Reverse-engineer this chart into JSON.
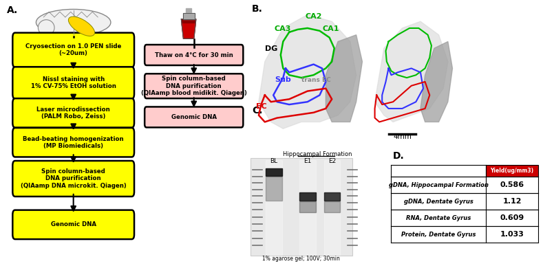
{
  "panel_A_label": "A.",
  "panel_B_label": "B.",
  "panel_C_label": "C.",
  "panel_D_label": "D.",
  "yellow_boxes": [
    "Cryosection on 1.0 PEN slide\n(~20um)",
    "Nissl staining with\n1% CV-75% EtOH solution",
    "Laser microdissection\n(PALM Robo, Zeiss)",
    "Bead-beating homogenization\n(MP Biomiedicals)",
    "Spin column-based\nDNA purification\n(QIAamp DNA microkit. Qiagen)",
    "Genomic DNA"
  ],
  "pink_boxes": [
    "Thaw on 4°C for 30 min",
    "Spin column-based\nDNA purification\n(QIAamp blood midikit. Qiagen)",
    "Genomic DNA"
  ],
  "yellow_color": "#FFFF00",
  "yellow_edge": "#000000",
  "pink_color": "#FFCCCC",
  "pink_edge": "#000000",
  "table_header": "Yield(ug/mm3)",
  "table_header_bg": "#CC0000",
  "table_header_color": "#FFFFFF",
  "table_rows": [
    [
      "gDNA, Hippocampal Formation",
      "0.586"
    ],
    [
      "gDNA, Dentate Gyrus",
      "1.12"
    ],
    [
      "RNA, Dentate Gyrus",
      "0.609"
    ],
    [
      "Protein, Dentate Gyrus",
      "1.033"
    ]
  ],
  "gel_label": "Hippocampal Formation",
  "gel_lanes": [
    "BL",
    "E1",
    "E2"
  ],
  "gel_bottom_text": "1% agarose gel; 100V; 30min",
  "scale_bar_text": "4mm",
  "background_color": "#FFFFFF"
}
